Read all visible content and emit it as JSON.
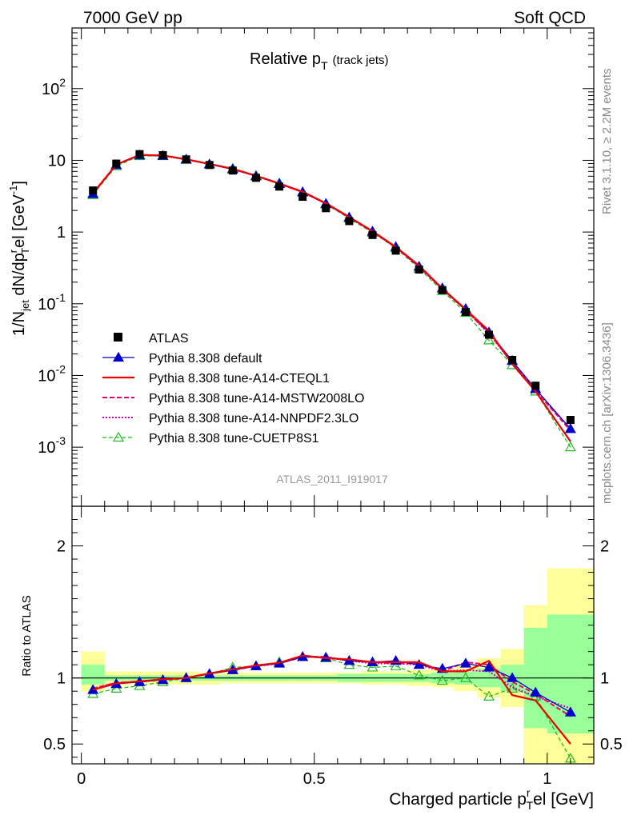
{
  "header": {
    "left": "7000 GeV pp",
    "right": "Soft QCD"
  },
  "side_labels": {
    "rivet": "Rivet 3.1.10, ≥ 2.2M events",
    "source": "mcplots.cern.ch [arXiv:1306.3436]"
  },
  "watermark": "ATLAS_2011_I919017",
  "colors": {
    "atlas": "#000000",
    "default": "#0000cc",
    "cteql1": "#ee0000",
    "mstw": "#ee0066",
    "nnpdf": "#cc00cc",
    "cuetp8s1": "#22bb22",
    "band_stat": "#99ff99",
    "band_total": "#ffff99"
  },
  "chart_data": [
    {
      "type": "line",
      "panel": "main",
      "title": "Relative p",
      "title_sub": "T",
      "title_suffix": "(track jets)",
      "ylabel": "1/N dN/dp el [GeV ]",
      "ylabel_parts": {
        "pre": "1/N",
        "jet": "jet",
        "mid": " dN/dp",
        "sup_r": "r",
        "sub_T": "T",
        "post": "el [GeV",
        "exp": "-1",
        "close": "]"
      },
      "y_scale": "log",
      "ylim": [
        0.00015,
        700
      ],
      "xlim": [
        -0.02,
        1.1
      ],
      "y_ticks": [
        {
          "value": 0.001,
          "base": "10",
          "exp": "-3"
        },
        {
          "value": 0.01,
          "base": "10",
          "exp": "-2"
        },
        {
          "value": 0.1,
          "base": "10",
          "exp": "-1"
        },
        {
          "value": 1,
          "base": "1",
          "exp": ""
        },
        {
          "value": 10,
          "base": "10",
          "exp": ""
        },
        {
          "value": 100,
          "base": "10",
          "exp": "2"
        }
      ],
      "x": [
        0.025,
        0.075,
        0.125,
        0.175,
        0.225,
        0.275,
        0.325,
        0.375,
        0.425,
        0.475,
        0.525,
        0.575,
        0.625,
        0.675,
        0.725,
        0.775,
        0.825,
        0.875,
        0.925,
        0.975,
        1.05
      ],
      "series": [
        {
          "key": "atlas",
          "name": "ATLAS",
          "style": "data",
          "values": [
            3.8,
            9.0,
            12.2,
            11.8,
            10.3,
            8.6,
            7.2,
            5.7,
            4.3,
            3.1,
            2.15,
            1.42,
            0.91,
            0.55,
            0.3,
            0.155,
            0.077,
            0.037,
            0.0165,
            0.0072,
            0.0024
          ]
        },
        {
          "key": "default",
          "name": "Pythia 8.308 default",
          "style": "solid-triangle",
          "values": [
            3.4,
            8.6,
            11.8,
            11.6,
            10.3,
            8.8,
            7.5,
            6.0,
            4.7,
            3.6,
            2.48,
            1.6,
            1.02,
            0.62,
            0.33,
            0.165,
            0.085,
            0.04,
            0.016,
            0.0065,
            0.0018
          ]
        },
        {
          "key": "cteql1",
          "name": "Pythia 8.308 tune-A14-CTEQL1",
          "style": "solid",
          "values": [
            3.45,
            8.7,
            11.9,
            11.7,
            10.35,
            8.9,
            7.6,
            6.1,
            4.75,
            3.65,
            2.52,
            1.62,
            1.03,
            0.62,
            0.34,
            0.163,
            0.083,
            0.042,
            0.0145,
            0.006,
            0.0012
          ]
        },
        {
          "key": "mstw",
          "name": "Pythia 8.308 tune-A14-MSTW2008LO",
          "style": "dashed",
          "values": [
            3.5,
            8.75,
            11.9,
            11.7,
            10.3,
            8.9,
            7.6,
            6.1,
            4.7,
            3.6,
            2.5,
            1.6,
            1.02,
            0.61,
            0.33,
            0.16,
            0.082,
            0.039,
            0.0155,
            0.0062,
            0.0017
          ]
        },
        {
          "key": "nnpdf",
          "name": "Pythia 8.308 tune-A14-NNPDF2.3LO",
          "style": "dotted",
          "values": [
            3.5,
            8.7,
            11.8,
            11.6,
            10.3,
            8.9,
            7.55,
            6.05,
            4.7,
            3.6,
            2.49,
            1.6,
            1.01,
            0.61,
            0.33,
            0.16,
            0.082,
            0.038,
            0.015,
            0.0062,
            0.0018
          ]
        },
        {
          "key": "cuetp8s1",
          "name": "Pythia 8.308 tune-CUETP8S1",
          "style": "dashed-open-triangle",
          "values": [
            3.3,
            8.3,
            11.5,
            11.5,
            10.2,
            8.8,
            7.7,
            6.1,
            4.8,
            3.6,
            2.45,
            1.55,
            0.98,
            0.6,
            0.31,
            0.152,
            0.075,
            0.031,
            0.014,
            0.006,
            0.001
          ]
        }
      ]
    },
    {
      "type": "line",
      "panel": "ratio",
      "ylabel": "Ratio to ATLAS",
      "xlabel": "Charged particle p el [GeV]",
      "xlabel_parts": {
        "pre": "Charged particle p",
        "sup_r": "r",
        "sub_T": "T",
        "post": "el [GeV]"
      },
      "ylim": [
        0.35,
        2.3
      ],
      "xlim": [
        -0.02,
        1.1
      ],
      "y_ticks": [
        0.5,
        1,
        2
      ],
      "y_tick_labels": [
        "0.5",
        "1",
        "2"
      ],
      "x_ticks": [
        0,
        0.5,
        1
      ],
      "x_tick_labels": [
        "0",
        "0.5",
        "1"
      ],
      "bands": {
        "edges": [
          0.0,
          0.05,
          0.1,
          0.15,
          0.2,
          0.25,
          0.3,
          0.35,
          0.4,
          0.45,
          0.5,
          0.55,
          0.6,
          0.65,
          0.7,
          0.75,
          0.8,
          0.85,
          0.9,
          0.95,
          1.0,
          1.1
        ],
        "total": [
          [
            0.9,
            1.2
          ],
          [
            0.94,
            1.05
          ],
          [
            0.95,
            1.05
          ],
          [
            0.95,
            1.05
          ],
          [
            0.95,
            1.05
          ],
          [
            0.95,
            1.04
          ],
          [
            0.96,
            1.04
          ],
          [
            0.96,
            1.04
          ],
          [
            0.96,
            1.04
          ],
          [
            0.96,
            1.04
          ],
          [
            0.96,
            1.04
          ],
          [
            0.96,
            1.04
          ],
          [
            0.95,
            1.05
          ],
          [
            0.95,
            1.05
          ],
          [
            0.94,
            1.06
          ],
          [
            0.93,
            1.07
          ],
          [
            0.9,
            1.1
          ],
          [
            0.85,
            1.15
          ],
          [
            0.78,
            1.22
          ],
          [
            0.35,
            1.55
          ],
          [
            0.35,
            1.83
          ]
        ],
        "stat": [
          [
            0.95,
            1.1
          ],
          [
            0.98,
            1.02
          ],
          [
            0.98,
            1.02
          ],
          [
            0.98,
            1.02
          ],
          [
            0.98,
            1.02
          ],
          [
            0.98,
            1.02
          ],
          [
            0.98,
            1.02
          ],
          [
            0.98,
            1.02
          ],
          [
            0.98,
            1.02
          ],
          [
            0.98,
            1.02
          ],
          [
            0.98,
            1.02
          ],
          [
            0.97,
            1.03
          ],
          [
            0.97,
            1.03
          ],
          [
            0.97,
            1.03
          ],
          [
            0.97,
            1.03
          ],
          [
            0.96,
            1.04
          ],
          [
            0.95,
            1.05
          ],
          [
            0.93,
            1.07
          ],
          [
            0.9,
            1.1
          ],
          [
            0.62,
            1.38
          ],
          [
            0.58,
            1.48
          ]
        ]
      },
      "x": [
        0.025,
        0.075,
        0.125,
        0.175,
        0.225,
        0.275,
        0.325,
        0.375,
        0.425,
        0.475,
        0.525,
        0.575,
        0.625,
        0.675,
        0.725,
        0.775,
        0.825,
        0.875,
        0.925,
        0.975,
        1.05
      ],
      "series": [
        {
          "key": "default",
          "name": "Pythia 8.308 default",
          "values": [
            0.91,
            0.955,
            0.97,
            0.985,
            1.0,
            1.03,
            1.06,
            1.09,
            1.11,
            1.16,
            1.155,
            1.13,
            1.12,
            1.13,
            1.1,
            1.07,
            1.11,
            1.08,
            1.0,
            0.89,
            0.74
          ]
        },
        {
          "key": "cteql1",
          "name": "Pythia 8.308 tune-A14-CTEQL1",
          "values": [
            0.91,
            0.96,
            0.975,
            0.99,
            1.0,
            1.035,
            1.065,
            1.095,
            1.115,
            1.17,
            1.15,
            1.14,
            1.12,
            1.12,
            1.12,
            1.05,
            1.05,
            1.13,
            0.87,
            0.83,
            0.5
          ]
        },
        {
          "key": "mstw",
          "name": "Pythia 8.308 tune-A14-MSTW2008LO",
          "values": [
            0.92,
            0.965,
            0.97,
            0.99,
            1.0,
            1.035,
            1.06,
            1.09,
            1.11,
            1.16,
            1.16,
            1.13,
            1.12,
            1.11,
            1.11,
            1.05,
            1.12,
            1.1,
            0.97,
            0.88,
            0.71
          ]
        },
        {
          "key": "nnpdf",
          "name": "Pythia 8.308 tune-A14-NNPDF2.3LO",
          "values": [
            0.92,
            0.965,
            0.97,
            0.99,
            1.0,
            1.035,
            1.06,
            1.09,
            1.11,
            1.16,
            1.16,
            1.13,
            1.11,
            1.11,
            1.1,
            1.05,
            1.06,
            1.05,
            0.93,
            0.86,
            0.77
          ]
        },
        {
          "key": "cuetp8s1",
          "name": "Pythia 8.308 tune-CUETP8S1",
          "values": [
            0.88,
            0.92,
            0.94,
            0.97,
            1.0,
            1.03,
            1.08,
            1.09,
            1.12,
            1.16,
            1.15,
            1.1,
            1.08,
            1.09,
            1.02,
            0.98,
            1.0,
            0.86,
            0.92,
            0.86,
            0.39
          ]
        }
      ]
    }
  ]
}
